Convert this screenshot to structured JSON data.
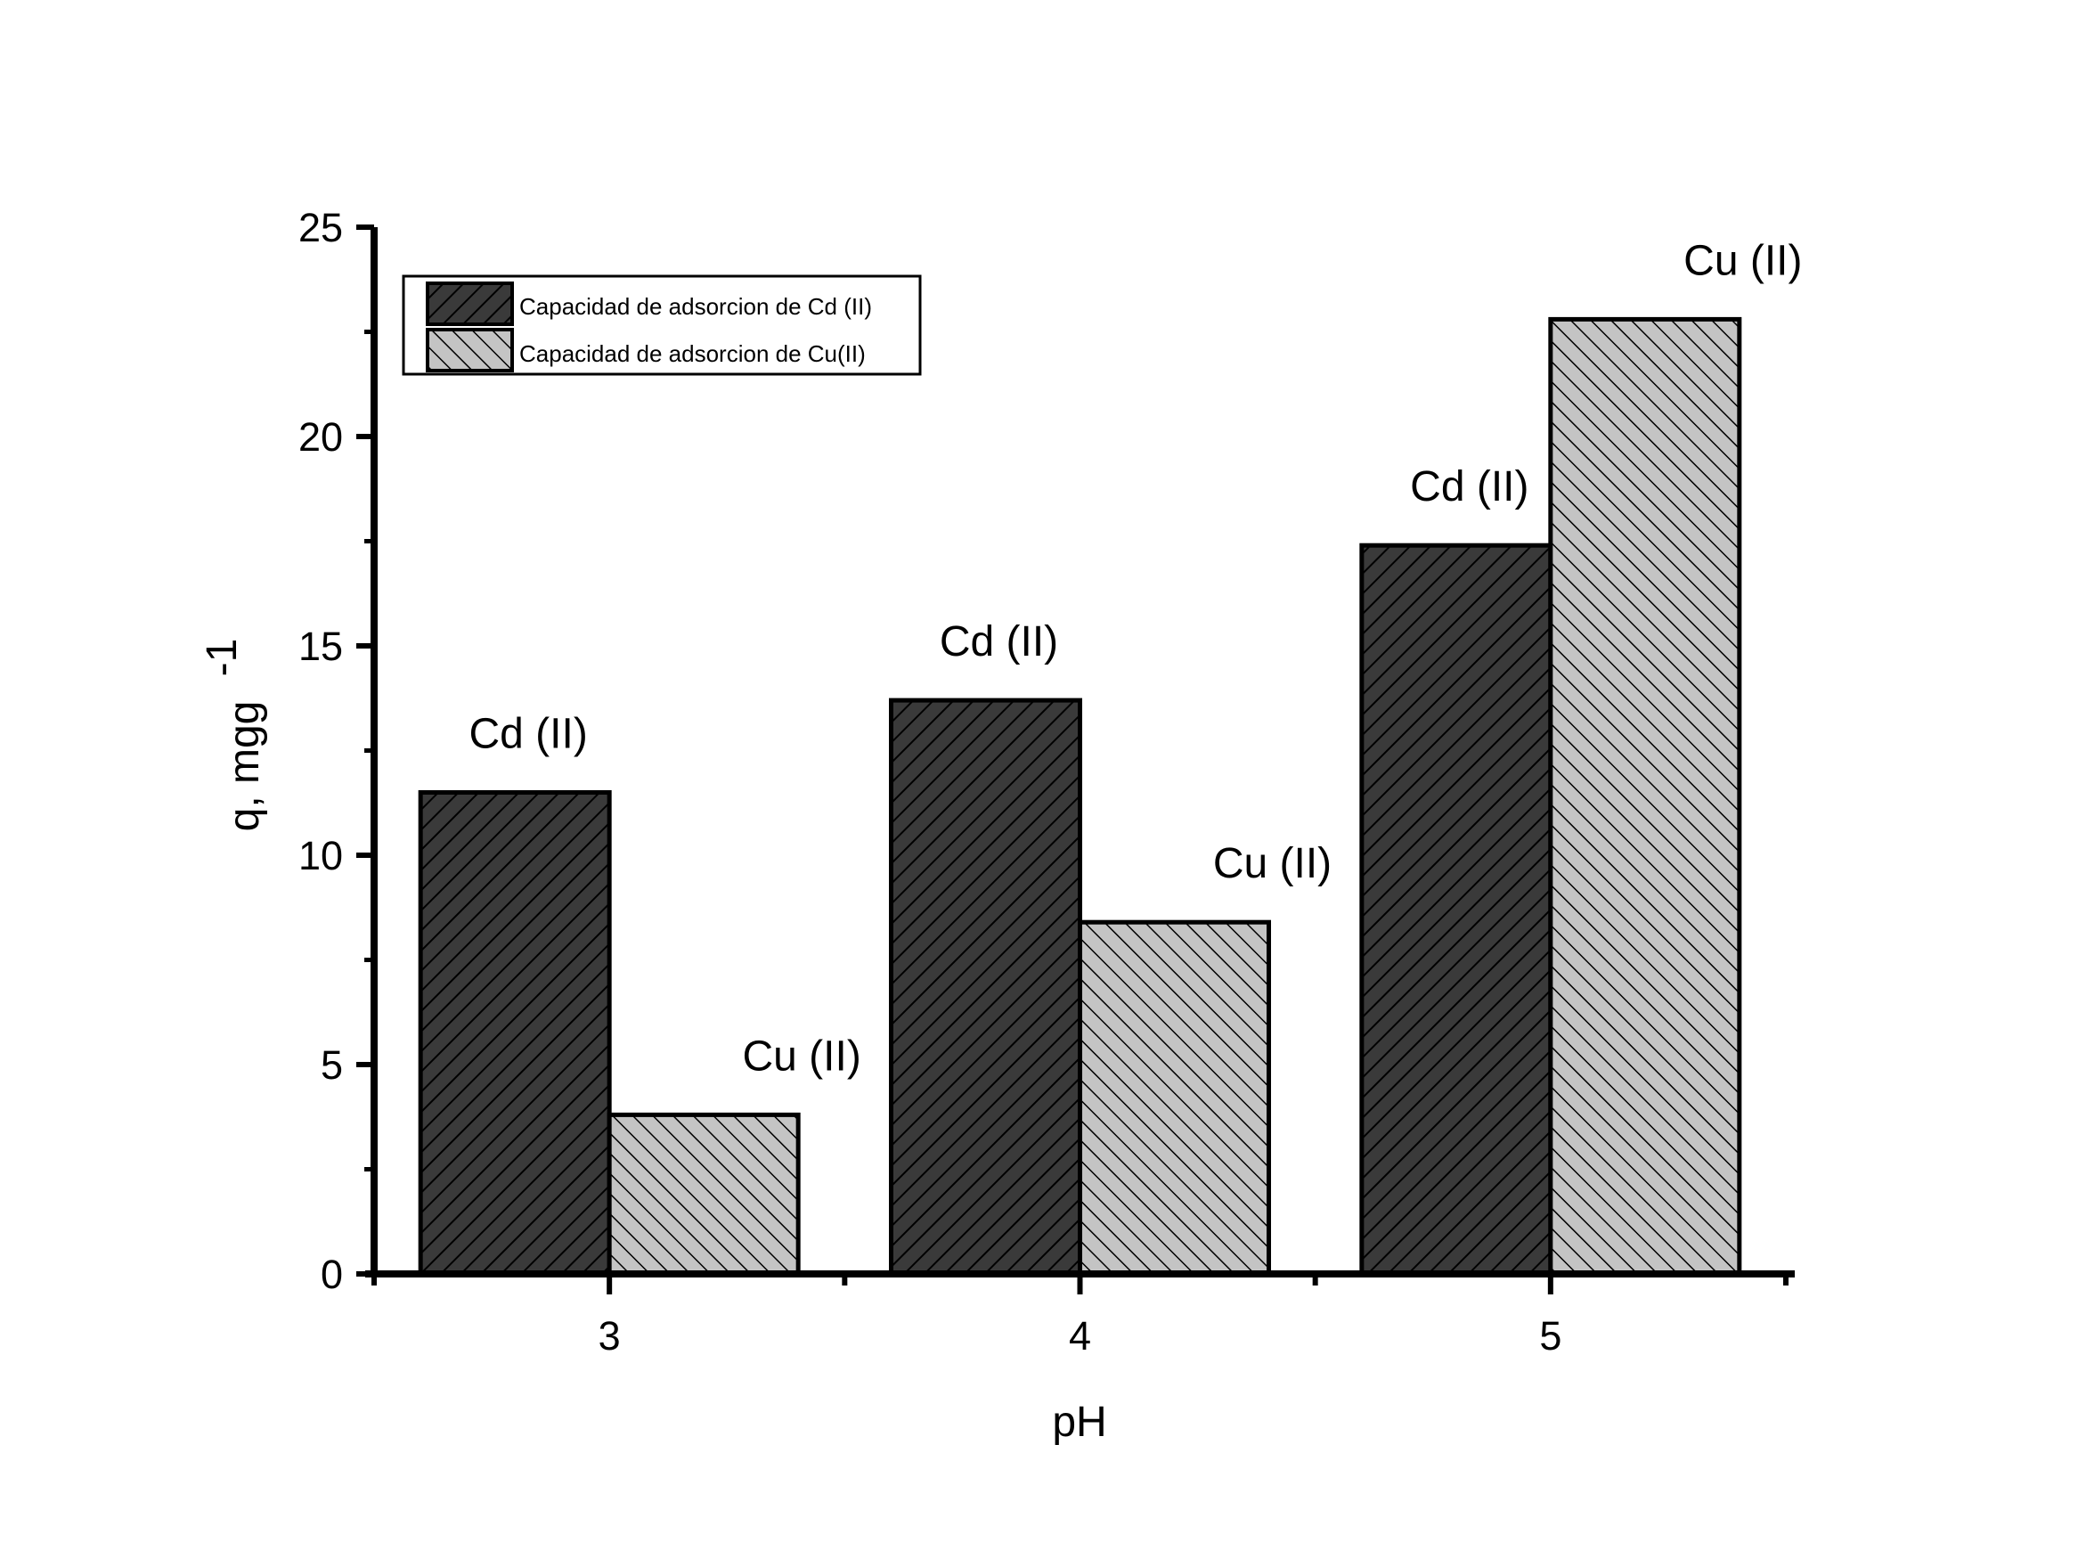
{
  "chart_data": {
    "type": "bar",
    "title": "",
    "xlabel": "pH",
    "ylabel": "q, mgg",
    "ylabel_superscript": "-1",
    "categories": [
      "3",
      "4",
      "5"
    ],
    "ylim": [
      0,
      25
    ],
    "yticks": [
      "0",
      "5",
      "10",
      "15",
      "20",
      "25"
    ],
    "legend_position": "top-left",
    "series": [
      {
        "name": "Capacidad de adsorcion de Cd (II)",
        "values": [
          11.5,
          13.7,
          17.4
        ],
        "labels": [
          "Cd (II)",
          "Cd (II)",
          "Cd (II)"
        ],
        "color": "#3a3a3a",
        "hatch": "forward"
      },
      {
        "name": "Capacidad de adsorcion de Cu(II)",
        "values": [
          3.8,
          8.4,
          22.8
        ],
        "labels": [
          "Cu (II)",
          "Cu (II)",
          "Cu (II)"
        ],
        "color": "#c4c4c4",
        "hatch": "backward"
      }
    ]
  }
}
